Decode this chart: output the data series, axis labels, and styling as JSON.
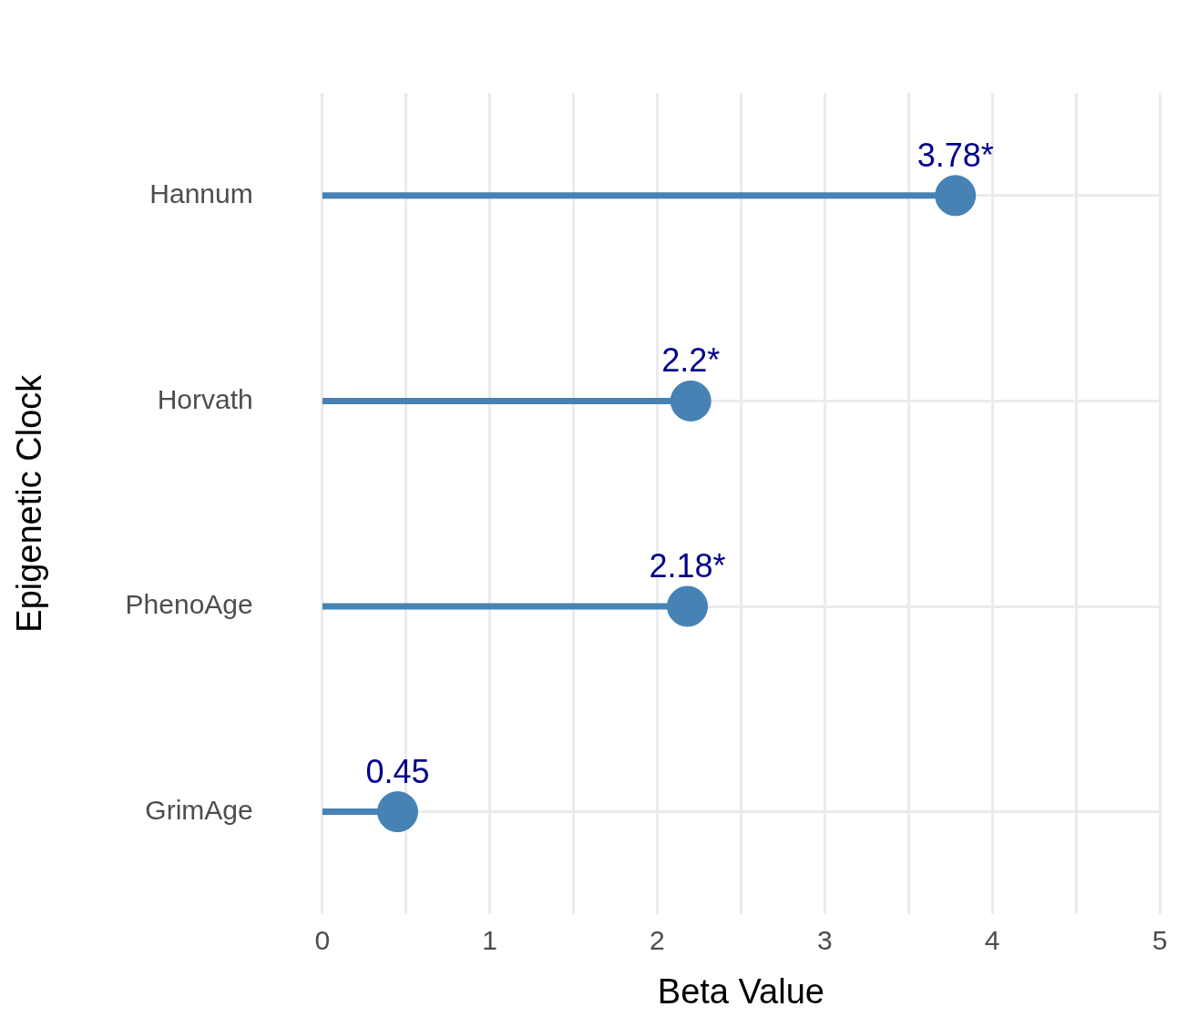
{
  "chart_data": {
    "type": "lollipop",
    "orientation": "horizontal",
    "xlabel": "Beta Value",
    "ylabel": "Epigenetic Clock",
    "categories": [
      "Hannum",
      "Horvath",
      "PhenoAge",
      "GrimAge"
    ],
    "values": [
      3.78,
      2.2,
      2.18,
      0.45
    ],
    "value_labels": [
      "3.78*",
      "2.2*",
      "2.18*",
      "0.45"
    ],
    "color": "#4682b4",
    "xlim": [
      0,
      5
    ],
    "xticks": [
      0,
      {
        "value": 0.5,
        "label": null
      },
      1,
      {
        "value": 1.5,
        "label": null
      },
      2,
      {
        "value": 2.5,
        "label": null
      },
      3,
      {
        "value": 3.5,
        "label": null
      },
      4,
      {
        "value": 4.5,
        "label": null
      },
      5
    ],
    "grid": true,
    "marker": "circle"
  }
}
